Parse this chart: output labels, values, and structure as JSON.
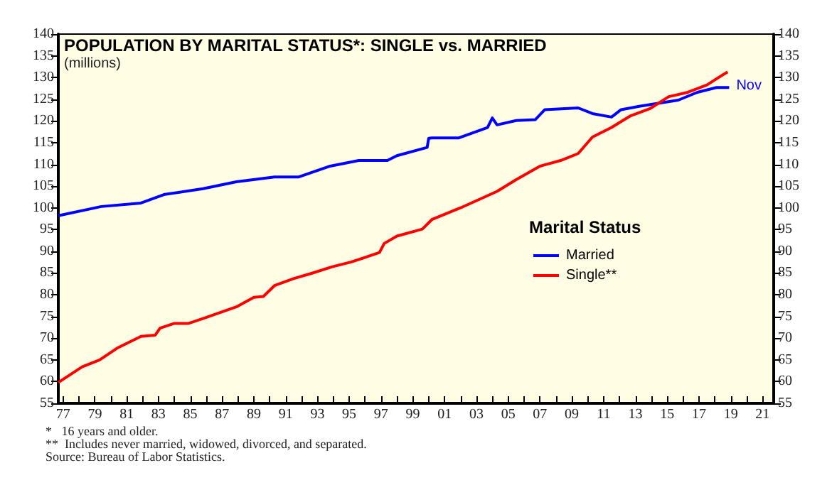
{
  "chart_data": {
    "type": "line",
    "title": "POPULATION BY MARITAL STATUS*: SINGLE vs. MARRIED",
    "subtitle": "(millions)",
    "legend_title": "Marital Status",
    "legend": "right",
    "grid": false,
    "marker": "none",
    "line_style": "solid",
    "xlim": [
      1976.7,
      2021.7
    ],
    "xticks": [
      {
        "value": 1977,
        "label": "77"
      },
      {
        "value": 1978,
        "label": null
      },
      {
        "value": 1979,
        "label": "79"
      },
      {
        "value": 1980,
        "label": null
      },
      {
        "value": 1981,
        "label": "81"
      },
      {
        "value": 1982,
        "label": null
      },
      {
        "value": 1983,
        "label": "83"
      },
      {
        "value": 1984,
        "label": null
      },
      {
        "value": 1985,
        "label": "85"
      },
      {
        "value": 1986,
        "label": null
      },
      {
        "value": 1987,
        "label": "87"
      },
      {
        "value": 1988,
        "label": null
      },
      {
        "value": 1989,
        "label": "89"
      },
      {
        "value": 1990,
        "label": null
      },
      {
        "value": 1991,
        "label": "91"
      },
      {
        "value": 1992,
        "label": null
      },
      {
        "value": 1993,
        "label": "93"
      },
      {
        "value": 1994,
        "label": null
      },
      {
        "value": 1995,
        "label": "95"
      },
      {
        "value": 1996,
        "label": null
      },
      {
        "value": 1997,
        "label": "97"
      },
      {
        "value": 1998,
        "label": null
      },
      {
        "value": 1999,
        "label": "99"
      },
      {
        "value": 2000,
        "label": null
      },
      {
        "value": 2001,
        "label": "01"
      },
      {
        "value": 2002,
        "label": null
      },
      {
        "value": 2003,
        "label": "03"
      },
      {
        "value": 2004,
        "label": null
      },
      {
        "value": 2005,
        "label": "05"
      },
      {
        "value": 2006,
        "label": null
      },
      {
        "value": 2007,
        "label": "07"
      },
      {
        "value": 2008,
        "label": null
      },
      {
        "value": 2009,
        "label": "09"
      },
      {
        "value": 2010,
        "label": null
      },
      {
        "value": 2011,
        "label": "11"
      },
      {
        "value": 2012,
        "label": null
      },
      {
        "value": 2013,
        "label": "13"
      },
      {
        "value": 2014,
        "label": null
      },
      {
        "value": 2015,
        "label": "15"
      },
      {
        "value": 2016,
        "label": null
      },
      {
        "value": 2017,
        "label": "17"
      },
      {
        "value": 2018,
        "label": null
      },
      {
        "value": 2019,
        "label": "19"
      },
      {
        "value": 2020,
        "label": null
      },
      {
        "value": 2021,
        "label": "21"
      }
    ],
    "ylim": [
      55,
      140
    ],
    "yticks": [
      55,
      60,
      65,
      70,
      75,
      80,
      85,
      90,
      95,
      100,
      105,
      110,
      115,
      120,
      125,
      130,
      135,
      140
    ],
    "y2lim": [
      55,
      140
    ],
    "y2ticks": [
      55,
      60,
      65,
      70,
      75,
      80,
      85,
      90,
      95,
      100,
      105,
      110,
      115,
      120,
      125,
      130,
      135,
      140
    ],
    "series": [
      {
        "name": "Married",
        "color": "#0000ff",
        "x": [
          1976.7,
          1979.4,
          1981.9,
          1983.4,
          1985.8,
          1987.9,
          1990.3,
          1991.8,
          1993.8,
          1995.6,
          1997.4,
          1998.0,
          1999.9,
          2000.0,
          2000.2,
          2001.9,
          2003.7,
          2004.0,
          2004.3,
          2005.5,
          2006.7,
          2007.3,
          2009.4,
          2010.3,
          2011.5,
          2012.1,
          2013.3,
          2014.5,
          2015.7,
          2016.9,
          2018.1,
          2018.9
        ],
        "values": [
          98.2,
          100.3,
          101.1,
          103.1,
          104.4,
          106.0,
          107.1,
          107.1,
          109.6,
          110.9,
          110.9,
          112.0,
          113.9,
          116.0,
          116.1,
          116.1,
          118.5,
          120.7,
          119.1,
          120.1,
          120.3,
          122.6,
          123.0,
          121.7,
          120.9,
          122.6,
          123.4,
          124.1,
          124.8,
          126.6,
          127.7,
          127.7
        ]
      },
      {
        "name": "Single**",
        "color": "#ff0000",
        "x": [
          1976.7,
          1978.2,
          1979.3,
          1980.4,
          1981.9,
          1982.8,
          1983.1,
          1984.0,
          1984.9,
          1985.8,
          1987.9,
          1989.0,
          1989.6,
          1990.3,
          1991.5,
          1992.7,
          1993.9,
          1995.1,
          1996.9,
          1997.2,
          1998.0,
          1999.6,
          2000.2,
          2002.0,
          2004.3,
          2005.5,
          2007.0,
          2008.3,
          2009.4,
          2010.3,
          2011.5,
          2012.7,
          2013.9,
          2015.1,
          2016.3,
          2017.5,
          2018.8
        ],
        "values": [
          59.8,
          63.4,
          65.0,
          67.7,
          70.4,
          70.7,
          72.3,
          73.4,
          73.4,
          74.5,
          77.2,
          79.4,
          79.6,
          82.1,
          83.7,
          85.0,
          86.4,
          87.5,
          89.7,
          91.8,
          93.5,
          95.1,
          97.3,
          100.0,
          103.8,
          106.5,
          109.6,
          110.9,
          112.5,
          116.3,
          118.5,
          121.2,
          122.8,
          125.6,
          126.6,
          128.3,
          131.3
        ]
      }
    ],
    "annotations": [
      {
        "text": "Nov",
        "x": 2018.9,
        "y": 127.7
      },
      "*   16 years and older.",
      "**  Includes never married, widowed, divorced, and separated.",
      "Source: Bureau of Labor Statistics."
    ]
  }
}
